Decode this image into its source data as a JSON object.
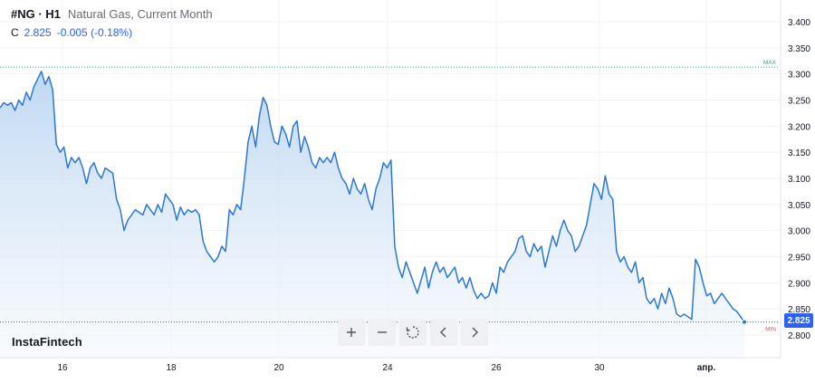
{
  "header": {
    "symbol": "#NG · H1",
    "description": "Natural Gas, Current Month",
    "close_label": "C",
    "close_value": "2.825",
    "change": "-0.005 (-0.18%)"
  },
  "brand": "InstaFintech",
  "toolbar": {
    "buttons": [
      "zoom-in",
      "zoom-out",
      "reset",
      "scroll-left",
      "scroll-right"
    ]
  },
  "last_price_tag": "2.825",
  "markers": {
    "max_label": "MAX",
    "min_label": "MIN",
    "max_value": 3.313,
    "min_value": 2.825
  },
  "colors": {
    "line": "#2a78d6",
    "fill_top": "#bcd6f2",
    "fill_bottom": "#f4f8fd",
    "accent": "#2962ff",
    "max": "#26a69a",
    "min": "#ef5350"
  },
  "chart_data": {
    "type": "area",
    "title": "Natural Gas, Current Month",
    "series": [
      {
        "name": "#NG · H1",
        "values": [
          3.235,
          3.245,
          3.24,
          3.245,
          3.23,
          3.25,
          3.24,
          3.265,
          3.25,
          3.275,
          3.29,
          3.305,
          3.28,
          3.295,
          3.27,
          3.165,
          3.15,
          3.16,
          3.12,
          3.14,
          3.13,
          3.14,
          3.12,
          3.09,
          3.12,
          3.13,
          3.11,
          3.1,
          3.12,
          3.115,
          3.11,
          3.06,
          3.04,
          3.0,
          3.02,
          3.03,
          3.04,
          3.035,
          3.03,
          3.05,
          3.04,
          3.03,
          3.05,
          3.035,
          3.07,
          3.06,
          3.05,
          3.02,
          3.045,
          3.03,
          3.04,
          3.035,
          3.04,
          3.03,
          2.98,
          2.96,
          2.95,
          2.94,
          2.95,
          2.97,
          2.96,
          3.04,
          3.03,
          3.05,
          3.04,
          3.1,
          3.17,
          3.2,
          3.16,
          3.22,
          3.255,
          3.24,
          3.2,
          3.17,
          3.165,
          3.2,
          3.185,
          3.16,
          3.2,
          3.21,
          3.15,
          3.18,
          3.16,
          3.13,
          3.12,
          3.14,
          3.13,
          3.14,
          3.13,
          3.15,
          3.12,
          3.1,
          3.09,
          3.07,
          3.1,
          3.08,
          3.07,
          3.09,
          3.06,
          3.04,
          3.08,
          3.1,
          3.13,
          3.12,
          3.135,
          2.97,
          2.93,
          2.91,
          2.94,
          2.92,
          2.9,
          2.88,
          2.905,
          2.93,
          2.89,
          2.92,
          2.94,
          2.92,
          2.93,
          2.91,
          2.92,
          2.93,
          2.9,
          2.91,
          2.89,
          2.91,
          2.885,
          2.87,
          2.88,
          2.87,
          2.875,
          2.9,
          2.88,
          2.93,
          2.92,
          2.94,
          2.95,
          2.96,
          2.985,
          2.99,
          2.96,
          2.95,
          2.975,
          2.96,
          2.97,
          2.93,
          2.96,
          2.99,
          2.97,
          3.0,
          3.02,
          3.0,
          2.99,
          2.96,
          2.97,
          2.99,
          3.01,
          3.05,
          3.09,
          3.08,
          3.06,
          3.105,
          3.07,
          3.06,
          2.96,
          2.94,
          2.95,
          2.93,
          2.92,
          2.94,
          2.9,
          2.91,
          2.87,
          2.86,
          2.87,
          2.85,
          2.88,
          2.86,
          2.89,
          2.87,
          2.84,
          2.835,
          2.84,
          2.835,
          2.83,
          2.945,
          2.93,
          2.9,
          2.875,
          2.88,
          2.86,
          2.87,
          2.88,
          2.87,
          2.86,
          2.85,
          2.845,
          2.835,
          2.825
        ]
      }
    ],
    "x_tick_labels": [
      "16",
      "18",
      "20",
      "24",
      "26",
      "30",
      "апр."
    ],
    "y_tick_labels": [
      "3.400",
      "3.350",
      "3.300",
      "3.250",
      "3.200",
      "3.150",
      "3.100",
      "3.050",
      "3.000",
      "2.950",
      "2.900",
      "2.850",
      "2.800"
    ],
    "ylim": [
      2.8,
      3.4
    ],
    "grid": true,
    "last_value": 2.825
  }
}
